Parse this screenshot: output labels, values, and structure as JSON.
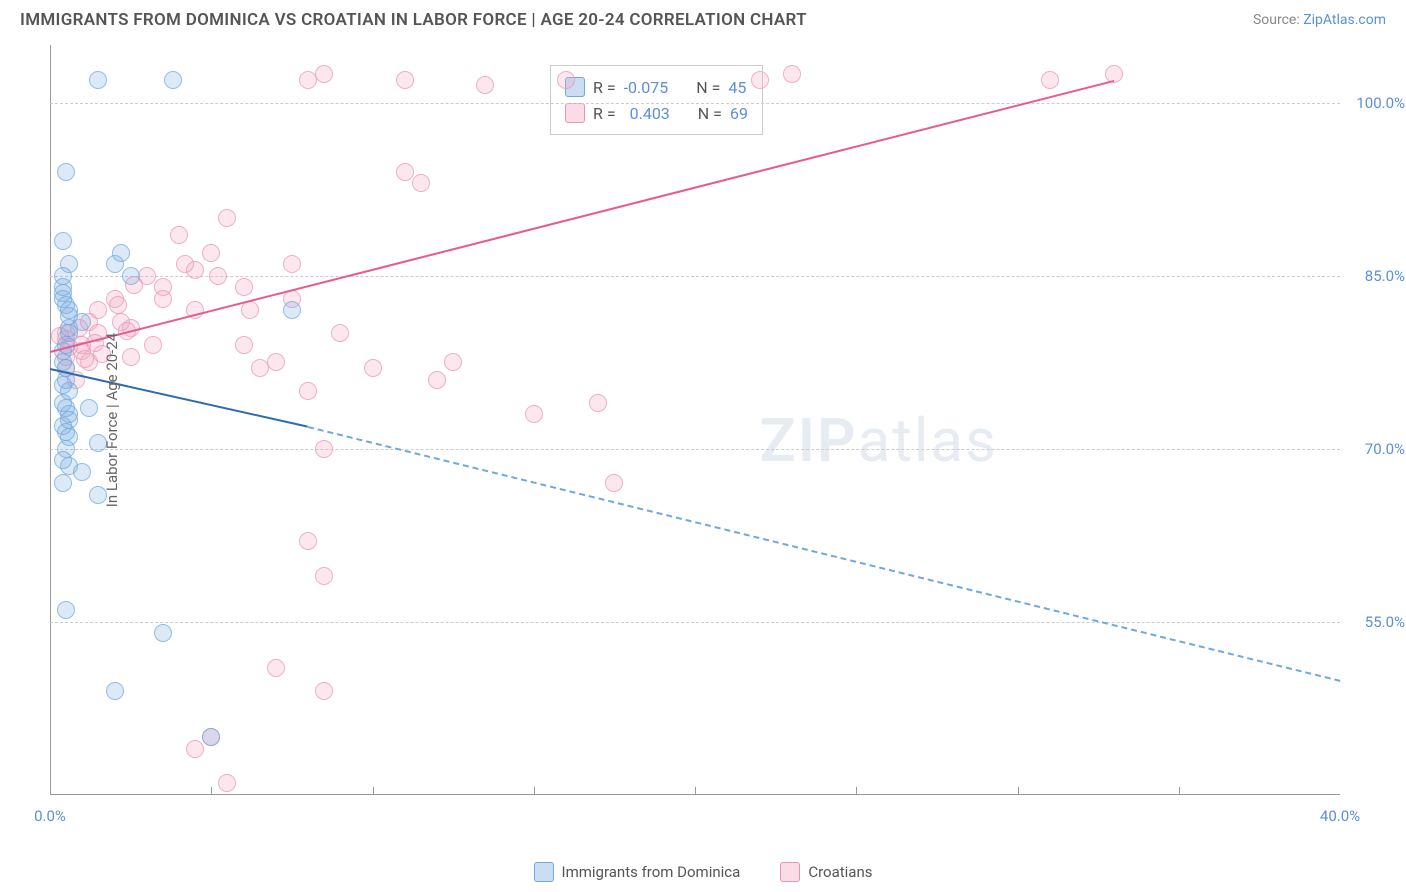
{
  "title": "IMMIGRANTS FROM DOMINICA VS CROATIAN IN LABOR FORCE | AGE 20-24 CORRELATION CHART",
  "source_label": "Source:",
  "source_name": "ZipAtlas.com",
  "y_axis_label": "In Labor Force | Age 20-24",
  "watermark_bold": "ZIP",
  "watermark_rest": "atlas",
  "chart": {
    "type": "scatter",
    "xlim": [
      0,
      40
    ],
    "ylim": [
      40,
      105
    ],
    "x_ticks": [
      0,
      40
    ],
    "x_tick_labels": [
      "0.0%",
      "40.0%"
    ],
    "x_minor_ticks": [
      5,
      10,
      15,
      20,
      25,
      30,
      35
    ],
    "y_ticks": [
      55,
      70,
      85,
      100
    ],
    "y_tick_labels": [
      "55.0%",
      "70.0%",
      "85.0%",
      "100.0%"
    ],
    "grid_color": "#cccccc",
    "background_color": "#ffffff",
    "series": {
      "dominica": {
        "label": "Immigrants from Dominica",
        "color_fill": "#9cc3e8",
        "color_stroke": "#6fa8dc",
        "R": "-0.075",
        "N": "45",
        "trend": {
          "x1": 0,
          "y1": 77,
          "x2": 8,
          "y2": 72,
          "x2_ext": 40,
          "y2_ext": 50
        },
        "points": [
          [
            1.5,
            102
          ],
          [
            3.8,
            102
          ],
          [
            0.5,
            94
          ],
          [
            0.4,
            88
          ],
          [
            0.6,
            86
          ],
          [
            2.0,
            86
          ],
          [
            2.5,
            85
          ],
          [
            0.4,
            83
          ],
          [
            0.6,
            82
          ],
          [
            1.0,
            81
          ],
          [
            0.6,
            80
          ],
          [
            0.5,
            79
          ],
          [
            0.4,
            77.5
          ],
          [
            0.5,
            77
          ],
          [
            0.4,
            75.5
          ],
          [
            0.6,
            75
          ],
          [
            7.5,
            82
          ],
          [
            0.5,
            73.5
          ],
          [
            0.6,
            73
          ],
          [
            1.2,
            73.5
          ],
          [
            0.4,
            72
          ],
          [
            0.6,
            71
          ],
          [
            0.5,
            70
          ],
          [
            1.5,
            70.5
          ],
          [
            0.6,
            68.5
          ],
          [
            0.4,
            67
          ],
          [
            1.5,
            66
          ],
          [
            0.5,
            56
          ],
          [
            3.5,
            54
          ],
          [
            2.0,
            49
          ],
          [
            5.0,
            45
          ],
          [
            0.4,
            85
          ],
          [
            0.4,
            84
          ],
          [
            0.5,
            82.5
          ],
          [
            0.6,
            80.5
          ],
          [
            0.4,
            78.5
          ],
          [
            0.5,
            76
          ],
          [
            0.4,
            74
          ],
          [
            0.6,
            72.5
          ],
          [
            0.5,
            71.5
          ],
          [
            0.4,
            69
          ],
          [
            1.0,
            68
          ],
          [
            0.6,
            81.5
          ],
          [
            0.4,
            83.5
          ],
          [
            2.2,
            87
          ]
        ]
      },
      "croatian": {
        "label": "Croatians",
        "color_fill": "#f4bdd1",
        "color_stroke": "#e895b5",
        "R": "0.403",
        "N": "69",
        "trend": {
          "x1": 0,
          "y1": 78.5,
          "x2": 33,
          "y2": 102
        },
        "points": [
          [
            8,
            102
          ],
          [
            8.5,
            102.5
          ],
          [
            11,
            102
          ],
          [
            13.5,
            101.5
          ],
          [
            16,
            102
          ],
          [
            22,
            102
          ],
          [
            23,
            102.5
          ],
          [
            31,
            102
          ],
          [
            33,
            102.5
          ],
          [
            0.5,
            80
          ],
          [
            1,
            79
          ],
          [
            0.5,
            78
          ],
          [
            0.5,
            79.5
          ],
          [
            1,
            78.5
          ],
          [
            1.2,
            81
          ],
          [
            1.5,
            82
          ],
          [
            2,
            83
          ],
          [
            2.5,
            80.5
          ],
          [
            3,
            85
          ],
          [
            3.5,
            84
          ],
          [
            4,
            88.5
          ],
          [
            4.5,
            85.5
          ],
          [
            5,
            87
          ],
          [
            5.5,
            90
          ],
          [
            6,
            79
          ],
          [
            6.5,
            77
          ],
          [
            7,
            77.5
          ],
          [
            7.5,
            86
          ],
          [
            8,
            75
          ],
          [
            8.5,
            70
          ],
          [
            9,
            80
          ],
          [
            10,
            77
          ],
          [
            11,
            94
          ],
          [
            11.5,
            93
          ],
          [
            12,
            76
          ],
          [
            12.5,
            77.5
          ],
          [
            15,
            73
          ],
          [
            17,
            74
          ],
          [
            17.5,
            67
          ],
          [
            8,
            62
          ],
          [
            8.5,
            59
          ],
          [
            7,
            51
          ],
          [
            8.5,
            49
          ],
          [
            5,
            45
          ],
          [
            5.5,
            41
          ],
          [
            4.5,
            44
          ],
          [
            0.5,
            77
          ],
          [
            1.5,
            80
          ],
          [
            2.5,
            78
          ],
          [
            3.5,
            83
          ],
          [
            4.5,
            82
          ],
          [
            6,
            84
          ],
          [
            7.5,
            83
          ],
          [
            0.8,
            76
          ],
          [
            1.2,
            77.5
          ],
          [
            2.2,
            81
          ],
          [
            3.2,
            79
          ],
          [
            4.2,
            86
          ],
          [
            5.2,
            85
          ],
          [
            6.2,
            82
          ],
          [
            0.6,
            78.8
          ],
          [
            1.4,
            79.2
          ],
          [
            2.4,
            80.2
          ],
          [
            0.3,
            79.8
          ],
          [
            0.9,
            80.5
          ],
          [
            1.1,
            77.8
          ],
          [
            1.6,
            78.2
          ],
          [
            2.1,
            82.5
          ],
          [
            2.6,
            84.2
          ]
        ]
      }
    }
  },
  "legend": {
    "R_label": "R =",
    "N_label": "N ="
  }
}
